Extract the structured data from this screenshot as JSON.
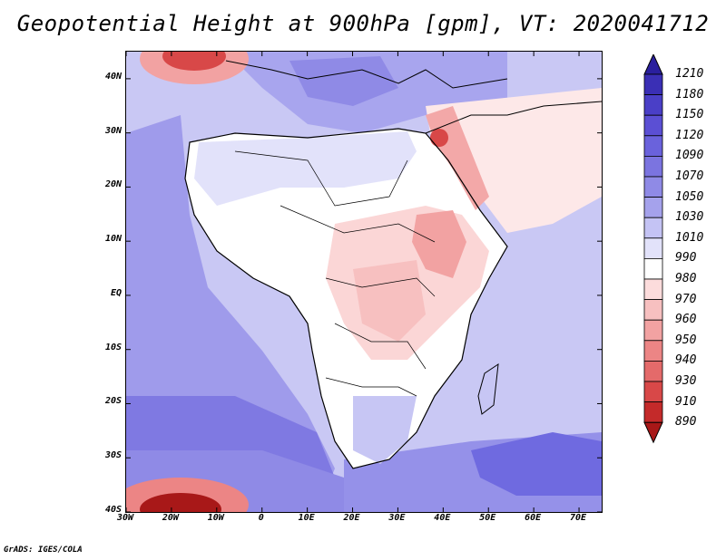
{
  "title": "Geopotential Height at 900hPa [gpm], VT: 2020041712",
  "credit": "GrADS: IGES/COLA",
  "map": {
    "lat_labels": [
      "40N",
      "30N",
      "20N",
      "10N",
      "EQ",
      "10S",
      "20S",
      "30S",
      "40S"
    ],
    "lat_values": [
      40,
      30,
      20,
      10,
      0,
      -10,
      -20,
      -30,
      -40
    ],
    "lon_labels": [
      "30W",
      "20W",
      "10W",
      "0",
      "10E",
      "20E",
      "30E",
      "40E",
      "50E",
      "60E",
      "70E"
    ],
    "lon_values": [
      -30,
      -20,
      -10,
      0,
      10,
      20,
      30,
      40,
      50,
      60,
      70
    ],
    "lon_range": [
      -30,
      75
    ],
    "lat_range": [
      -40,
      45
    ]
  },
  "colorbar": {
    "levels": [
      "1210",
      "1180",
      "1150",
      "1120",
      "1090",
      "1070",
      "1050",
      "1030",
      "1010",
      "990",
      "980",
      "970",
      "960",
      "950",
      "940",
      "930",
      "910",
      "890"
    ],
    "colors": [
      "#2a1f9e",
      "#3a2fb5",
      "#4a3fc7",
      "#5b4fd4",
      "#6a62dc",
      "#7b74e0",
      "#8f8ae6",
      "#a5a2ec",
      "#c4c3f4",
      "#e2e2fa",
      "#ffffff",
      "#fcdcdc",
      "#f7c0c0",
      "#f2a2a2",
      "#ec8585",
      "#e46a6a",
      "#d84848",
      "#c42a2a",
      "#a81818"
    ]
  },
  "regions": {
    "high_blue": "#6f6ae0",
    "mid_blue": "#9a96ea",
    "light_blue": "#c7c6f4",
    "land_white": "#ffffff",
    "pink": "#fbd6d6",
    "red": "#ee8a8a",
    "deep_red": "#c82a2a"
  }
}
